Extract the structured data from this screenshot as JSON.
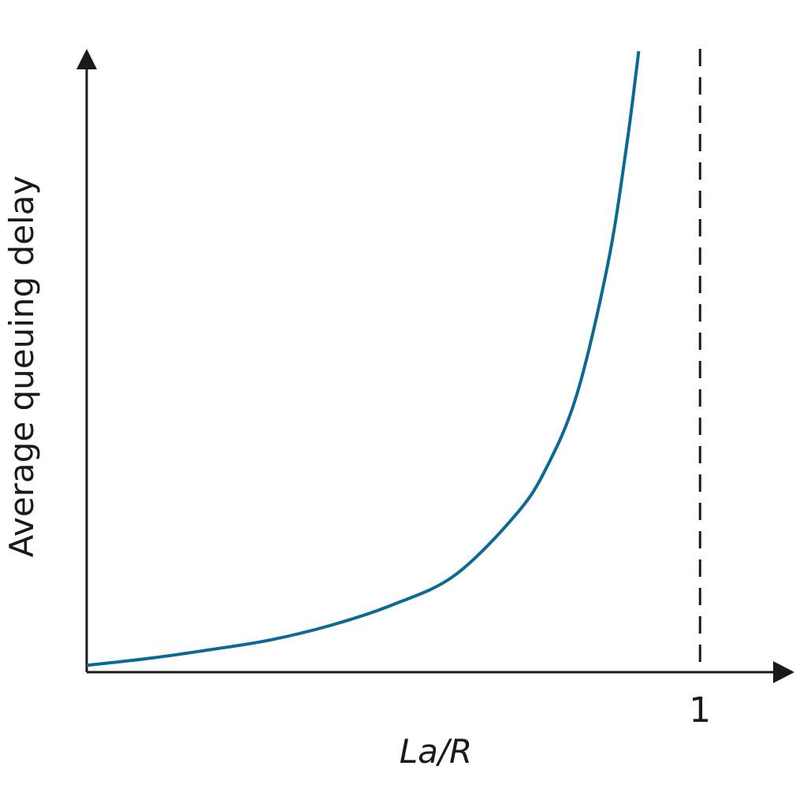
{
  "chart_data": {
    "type": "line",
    "title": "",
    "xlabel": "La/R",
    "ylabel": "Average queuing delay",
    "x_ticks": [
      {
        "value": 1,
        "label": "1"
      }
    ],
    "xlim": [
      0,
      1.15
    ],
    "ylim": [
      0,
      10
    ],
    "reference_line": {
      "x": 1,
      "style": "dashed"
    },
    "series": [
      {
        "x": [
          0,
          0.1,
          0.2,
          0.3,
          0.4,
          0.5,
          0.6,
          0.7,
          0.75,
          0.8,
          0.85,
          0.88,
          0.9
        ],
        "y": [
          0.11,
          0.22,
          0.36,
          0.52,
          0.76,
          1.09,
          1.56,
          2.54,
          3.3,
          4.5,
          6.59,
          8.46,
          10.0
        ]
      }
    ],
    "colors": {
      "curve": "#0b6a93",
      "axis": "#1a1a1a"
    },
    "grid": false,
    "legend": "none"
  }
}
